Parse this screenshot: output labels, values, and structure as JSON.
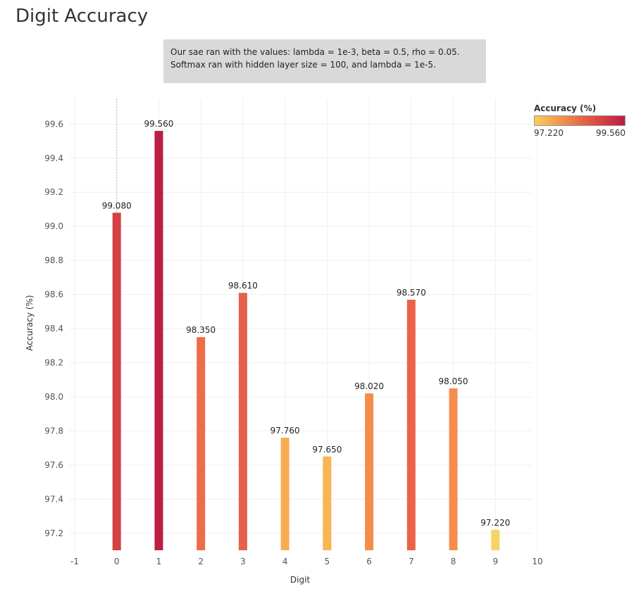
{
  "page": {
    "title": "Digit Accuracy",
    "note_lines": [
      "Our sae ran with the values: lambda = 1e-3, beta = 0.5, rho = 0.05.",
      "Softmax ran with hidden layer size = 100, and lambda = 1e-5."
    ]
  },
  "legend": {
    "title": "Accuracy (%)",
    "min_label": "97.220",
    "max_label": "99.560",
    "color_low": "#f8cc5e",
    "color_mid": "#f08c4a",
    "color_high": "#bb1f43"
  },
  "chart_data": {
    "type": "bar",
    "title": "Digit Accuracy",
    "xlabel": "Digit",
    "ylabel": "Accuracy (%)",
    "categories": [
      0,
      1,
      2,
      3,
      4,
      5,
      6,
      7,
      8,
      9
    ],
    "values": [
      99.08,
      99.56,
      98.35,
      98.61,
      97.76,
      97.65,
      98.02,
      98.57,
      98.05,
      97.22
    ],
    "value_labels": [
      "99.080",
      "99.560",
      "98.350",
      "98.610",
      "97.760",
      "97.650",
      "98.020",
      "98.570",
      "98.050",
      "97.220"
    ],
    "colors": [
      "#d34145",
      "#bb1f43",
      "#ec6d48",
      "#e5614a",
      "#f8ac52",
      "#f8b553",
      "#f58c4a",
      "#e8634a",
      "#f58e4c",
      "#f6d466"
    ],
    "xlim": [
      -1,
      10
    ],
    "x_ticks": [
      "-1",
      "0",
      "1",
      "2",
      "3",
      "4",
      "5",
      "6",
      "7",
      "8",
      "9",
      "10"
    ],
    "ylim": [
      97.1,
      99.75
    ],
    "y_ticks": [
      "97.2",
      "97.4",
      "97.6",
      "97.8",
      "98.0",
      "98.2",
      "98.4",
      "98.6",
      "98.8",
      "99.0",
      "99.2",
      "99.4",
      "99.6"
    ],
    "grid": true,
    "reference_line_x": 0
  }
}
